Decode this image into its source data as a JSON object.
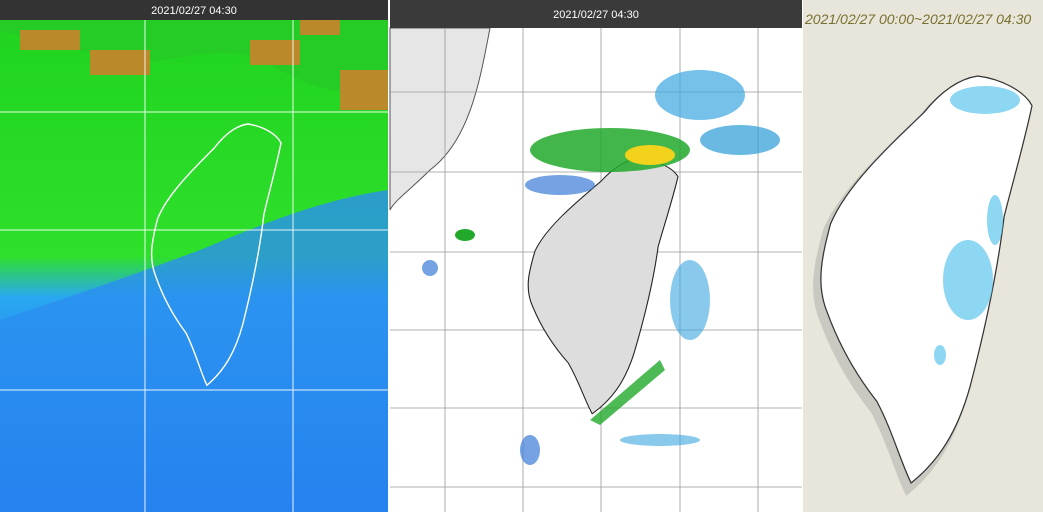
{
  "panels": [
    {
      "timestamp": "2021/02/27 04:30"
    },
    {
      "timestamp": "2021/02/27 04:30"
    },
    {
      "timestamp": "2021/02/27 00:00~2021/02/27 04:30"
    }
  ]
}
